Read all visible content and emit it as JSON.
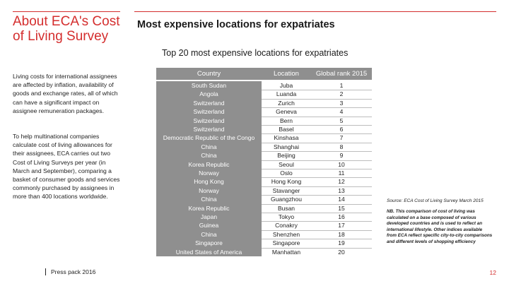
{
  "sidebar": {
    "title": "About ECA's Cost of Living Survey",
    "paragraph1": "Living costs for international assignees are affected by inflation, availability of goods and exchange rates, all of which can have a significant impact on assignee remuneration packages.",
    "paragraph2": "To help multinational companies calculate cost of living allowances for their assignees, ECA carries out two Cost of Living Surveys per year (in March and September), comparing a basket of consumer goods and services commonly purchased by assignees in more than 400 locations worldwide."
  },
  "footer": {
    "text": "Press pack 2016"
  },
  "main": {
    "title": "Most expensive locations for expatriates",
    "subtitle": "Top 20 most expensive locations for expatriates"
  },
  "table": {
    "headers": {
      "country": "Country",
      "location": "Location",
      "rank": "Global rank 2015"
    },
    "rows": [
      {
        "country": "South Sudan",
        "location": "Juba",
        "rank": "1"
      },
      {
        "country": "Angola",
        "location": "Luanda",
        "rank": "2"
      },
      {
        "country": "Switzerland",
        "location": "Zurich",
        "rank": "3"
      },
      {
        "country": "Switzerland",
        "location": "Geneva",
        "rank": "4"
      },
      {
        "country": "Switzerland",
        "location": "Bern",
        "rank": "5"
      },
      {
        "country": "Switzerland",
        "location": "Basel",
        "rank": "6"
      },
      {
        "country": "Democratic Republic of the Congo",
        "location": "Kinshasa",
        "rank": "7"
      },
      {
        "country": "China",
        "location": "Shanghai",
        "rank": "8"
      },
      {
        "country": "China",
        "location": "Beijing",
        "rank": "9"
      },
      {
        "country": "Korea Republic",
        "location": "Seoul",
        "rank": "10"
      },
      {
        "country": "Norway",
        "location": "Oslo",
        "rank": "11"
      },
      {
        "country": "Hong Kong",
        "location": "Hong Kong",
        "rank": "12"
      },
      {
        "country": "Norway",
        "location": "Stavanger",
        "rank": "13"
      },
      {
        "country": "China",
        "location": "Guangzhou",
        "rank": "14"
      },
      {
        "country": "Korea Republic",
        "location": "Busan",
        "rank": "15"
      },
      {
        "country": "Japan",
        "location": "Tokyo",
        "rank": "16"
      },
      {
        "country": "Guinea",
        "location": "Conakry",
        "rank": "17"
      },
      {
        "country": "China",
        "location": "Shenzhen",
        "rank": "18"
      },
      {
        "country": "Singapore",
        "location": "Singapore",
        "rank": "19"
      },
      {
        "country": "United States of America",
        "location": "Manhattan",
        "rank": "20"
      }
    ]
  },
  "source": "Source: ECA Cost of Living Survey March 2015",
  "note": "NB. This comparison of cost of living was calculated on a base composed of various developed countries and is used to reflect an international lifestyle. Other indices available from ECA reflect specific city-to-city comparisons and different levels of shopping efficiency",
  "page_number": "12",
  "colors": {
    "accent": "#d42e2e",
    "header_grey": "#8f8f8f"
  }
}
